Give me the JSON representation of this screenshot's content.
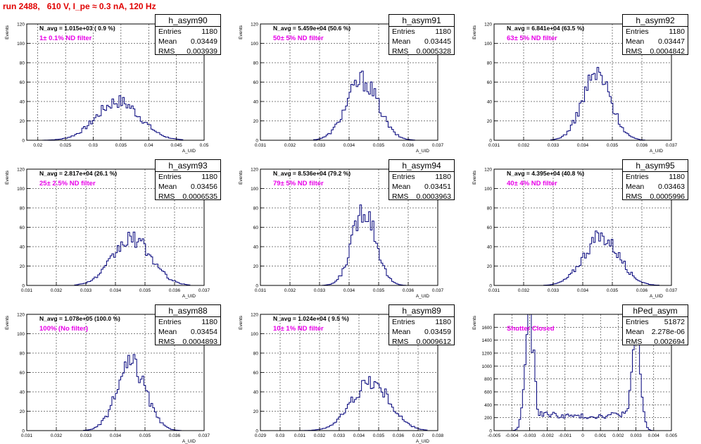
{
  "page": {
    "title": "run 2488,   610 V, I_pe ≈ 0.3 nA, 120 Hz"
  },
  "colors": {
    "hist": "#00007a",
    "title": "#e00000",
    "filter": "#e800e8",
    "grid": "#000000"
  },
  "chart_data": [
    {
      "type": "bar",
      "name": "h_asym90",
      "stats": {
        "entries": "1180",
        "mean": "0.03449",
        "rms": "0.003939"
      },
      "n_avg": "N_avg = 1.015e+03 ( 0.9 %)",
      "filter": "1± 0.1% ND filter",
      "xlabel": "A_UID",
      "ylabel": "Events",
      "xlim": [
        0.018,
        0.05
      ],
      "ylim": [
        0,
        120
      ],
      "xticks": [
        0.02,
        0.025,
        0.03,
        0.035,
        0.04,
        0.045,
        0.05
      ],
      "xtick_labels": [
        "0.02",
        "0.025",
        "0.03",
        "0.035",
        "0.04",
        "0.045",
        "0.05"
      ],
      "yticks": [
        0,
        20,
        40,
        60,
        80,
        100,
        120
      ],
      "ytick_labels": [
        "0",
        "20",
        "40",
        "60",
        "80",
        "100",
        "120"
      ],
      "bins": {
        "mean": 0.03449,
        "sigma": 0.003939,
        "peak": 40,
        "min": 0.021,
        "max": 0.046
      }
    },
    {
      "type": "bar",
      "name": "h_asym91",
      "stats": {
        "entries": "1180",
        "mean": "0.03445",
        "rms": "0.0005328"
      },
      "n_avg": "N_avg = 5.459e+04 (50.6 %)",
      "filter": "50± 5% ND filter",
      "xlabel": "A_UID",
      "ylabel": "Events",
      "xlim": [
        0.031,
        0.037
      ],
      "ylim": [
        0,
        120
      ],
      "xticks": [
        0.031,
        0.032,
        0.033,
        0.034,
        0.035,
        0.036,
        0.037
      ],
      "xtick_labels": [
        "0.031",
        "0.032",
        "0.033",
        "0.034",
        "0.035",
        "0.036",
        "0.037"
      ],
      "yticks": [
        0,
        20,
        40,
        60,
        80,
        100,
        120
      ],
      "ytick_labels": [
        "0",
        "20",
        "40",
        "60",
        "80",
        "100",
        "120"
      ],
      "bins": {
        "mean": 0.03445,
        "sigma": 0.0005328,
        "peak": 62,
        "min": 0.0328,
        "max": 0.0362
      }
    },
    {
      "type": "bar",
      "name": "h_asym92",
      "stats": {
        "entries": "1180",
        "mean": "0.03447",
        "rms": "0.0004842"
      },
      "n_avg": "N_avg = 6.841e+04 (63.5 %)",
      "filter": "63± 5% ND filter",
      "xlabel": "A_UID",
      "ylabel": "Events",
      "xlim": [
        0.031,
        0.037
      ],
      "ylim": [
        0,
        120
      ],
      "xticks": [
        0.031,
        0.032,
        0.033,
        0.034,
        0.035,
        0.036,
        0.037
      ],
      "xtick_labels": [
        "0.031",
        "0.032",
        "0.033",
        "0.034",
        "0.035",
        "0.036",
        "0.037"
      ],
      "yticks": [
        0,
        20,
        40,
        60,
        80,
        100,
        120
      ],
      "ytick_labels": [
        "0",
        "20",
        "40",
        "60",
        "80",
        "100",
        "120"
      ],
      "bins": {
        "mean": 0.03447,
        "sigma": 0.0004842,
        "peak": 68,
        "min": 0.0329,
        "max": 0.0361
      }
    },
    {
      "type": "bar",
      "name": "h_asym93",
      "stats": {
        "entries": "1180",
        "mean": "0.03456",
        "rms": "0.0006535"
      },
      "n_avg": "N_avg = 2.817e+04 (26.1 %)",
      "filter": "25± 2.5% ND filter",
      "xlabel": "A_UID",
      "ylabel": "Events",
      "xlim": [
        0.031,
        0.037
      ],
      "ylim": [
        0,
        120
      ],
      "xticks": [
        0.031,
        0.032,
        0.033,
        0.034,
        0.035,
        0.036,
        0.037
      ],
      "xtick_labels": [
        "0.031",
        "0.032",
        "0.033",
        "0.034",
        "0.035",
        "0.036",
        "0.037"
      ],
      "yticks": [
        0,
        20,
        40,
        60,
        80,
        100,
        120
      ],
      "ytick_labels": [
        "0",
        "20",
        "40",
        "60",
        "80",
        "100",
        "120"
      ],
      "bins": {
        "mean": 0.03456,
        "sigma": 0.0006535,
        "peak": 48,
        "min": 0.0326,
        "max": 0.0365
      }
    },
    {
      "type": "bar",
      "name": "h_asym94",
      "stats": {
        "entries": "1180",
        "mean": "0.03451",
        "rms": "0.0003963"
      },
      "n_avg": "N_avg = 8.536e+04 (79.2 %)",
      "filter": "79± 5% ND filter",
      "xlabel": "A_UID",
      "ylabel": "Events",
      "xlim": [
        0.031,
        0.037
      ],
      "ylim": [
        0,
        120
      ],
      "xticks": [
        0.031,
        0.032,
        0.033,
        0.034,
        0.035,
        0.036,
        0.037
      ],
      "xtick_labels": [
        "0.031",
        "0.032",
        "0.033",
        "0.034",
        "0.035",
        "0.036",
        "0.037"
      ],
      "yticks": [
        0,
        20,
        40,
        60,
        80,
        100,
        120
      ],
      "ytick_labels": [
        "0",
        "20",
        "40",
        "60",
        "80",
        "100",
        "120"
      ],
      "bins": {
        "mean": 0.03451,
        "sigma": 0.0003963,
        "peak": 80,
        "min": 0.0331,
        "max": 0.0359
      }
    },
    {
      "type": "bar",
      "name": "h_asym95",
      "stats": {
        "entries": "1180",
        "mean": "0.03463",
        "rms": "0.0005996"
      },
      "n_avg": "N_avg = 4.395e+04 (40.8 %)",
      "filter": "40± 4% ND filter",
      "xlabel": "A_UID",
      "ylabel": "Events",
      "xlim": [
        0.031,
        0.037
      ],
      "ylim": [
        0,
        120
      ],
      "xticks": [
        0.031,
        0.032,
        0.033,
        0.034,
        0.035,
        0.036,
        0.037
      ],
      "xtick_labels": [
        "0.031",
        "0.032",
        "0.033",
        "0.034",
        "0.035",
        "0.036",
        "0.037"
      ],
      "yticks": [
        0,
        20,
        40,
        60,
        80,
        100,
        120
      ],
      "ytick_labels": [
        "0",
        "20",
        "40",
        "60",
        "80",
        "100",
        "120"
      ],
      "bins": {
        "mean": 0.03463,
        "sigma": 0.0005996,
        "peak": 50,
        "min": 0.0327,
        "max": 0.0366
      }
    },
    {
      "type": "bar",
      "name": "h_asym88",
      "stats": {
        "entries": "1180",
        "mean": "0.03454",
        "rms": "0.0004893"
      },
      "n_avg": "N_avg = 1.078e+05 (100.0 %)",
      "filter": "100% (No filter)",
      "xlabel": "A_UID",
      "ylabel": "Events",
      "xlim": [
        0.031,
        0.037
      ],
      "ylim": [
        0,
        120
      ],
      "xticks": [
        0.031,
        0.032,
        0.033,
        0.034,
        0.035,
        0.036,
        0.037
      ],
      "xtick_labels": [
        "0.031",
        "0.032",
        "0.033",
        "0.034",
        "0.035",
        "0.036",
        "0.037"
      ],
      "yticks": [
        0,
        20,
        40,
        60,
        80,
        100,
        120
      ],
      "ytick_labels": [
        "0",
        "20",
        "40",
        "60",
        "80",
        "100",
        "120"
      ],
      "bins": {
        "mean": 0.03454,
        "sigma": 0.0004893,
        "peak": 68,
        "min": 0.0329,
        "max": 0.0362
      }
    },
    {
      "type": "bar",
      "name": "h_asym89",
      "stats": {
        "entries": "1180",
        "mean": "0.03459",
        "rms": "0.0009612"
      },
      "n_avg": "N_avg = 1.024e+04 ( 9.5 %)",
      "filter": "10± 1% ND filter",
      "xlabel": "A_UID",
      "ylabel": "Events",
      "xlim": [
        0.029,
        0.038
      ],
      "ylim": [
        0,
        120
      ],
      "xticks": [
        0.029,
        0.03,
        0.031,
        0.032,
        0.033,
        0.034,
        0.035,
        0.036,
        0.037,
        0.038
      ],
      "xtick_labels": [
        "0.029",
        "0.03",
        "0.031",
        "0.032",
        "0.033",
        "0.034",
        "0.035",
        "0.036",
        "0.037",
        "0.038"
      ],
      "yticks": [
        0,
        20,
        40,
        60,
        80,
        100,
        120
      ],
      "ytick_labels": [
        "0",
        "20",
        "40",
        "60",
        "80",
        "100",
        "120"
      ],
      "bins": {
        "mean": 0.03459,
        "sigma": 0.0009612,
        "peak": 50,
        "min": 0.0308,
        "max": 0.0375
      }
    },
    {
      "type": "bar",
      "name": "hPed_asym",
      "stats": {
        "entries": "51872",
        "mean": "2.278e-06",
        "rms": "0.002694"
      },
      "n_avg": "",
      "filter": "Shutter Closed",
      "xlabel": "",
      "ylabel": "Events",
      "xlim": [
        -0.005,
        0.005
      ],
      "ylim": [
        0,
        1800
      ],
      "xticks": [
        -0.005,
        -0.004,
        -0.003,
        -0.002,
        -0.001,
        0,
        0.001,
        0.002,
        0.003,
        0.004,
        0.005
      ],
      "xtick_labels": [
        "-0.005",
        "-0.004",
        "-0.003",
        "-0.002",
        "-0.001",
        "0",
        "0.001",
        "0.002",
        "0.003",
        "0.004",
        "0.005"
      ],
      "yticks": [
        0,
        200,
        400,
        600,
        800,
        1000,
        1200,
        1400,
        1600,
        1800
      ],
      "ytick_labels": [
        "0",
        "200",
        "400",
        "600",
        "800",
        "1000",
        "1200",
        "1400",
        "1600",
        ""
      ],
      "bins": {
        "bimodal": true,
        "peak1_x": -0.003,
        "peak1": 1750,
        "peak2_x": 0.003,
        "peak2": 1500,
        "valley": 220,
        "width": 0.00025,
        "min": -0.0041,
        "max": 0.0041
      }
    }
  ]
}
